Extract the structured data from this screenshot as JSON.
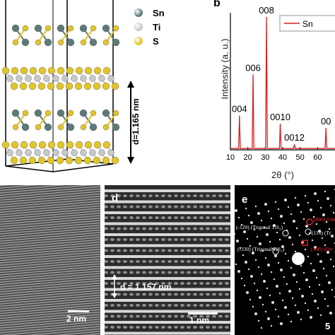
{
  "panel_a": {
    "legend": [
      {
        "label": "Sn",
        "color": "#5d7a78"
      },
      {
        "label": "Ti",
        "color": "#c8c8c8"
      },
      {
        "label": "S",
        "color": "#e3c52a"
      }
    ],
    "d_label": "d=1.165 nm"
  },
  "panel_b": {
    "letter": "b",
    "legend_label": "Sn",
    "chart_data": {
      "type": "line",
      "xlabel": "2θ (°)",
      "ylabel": "Intensity (a. u.)",
      "xlim": [
        10,
        70
      ],
      "xticks": [
        "10",
        "20",
        "30",
        "40",
        "50",
        "60"
      ],
      "series": [
        {
          "name": "Sn",
          "color": "#d62020"
        }
      ],
      "peaks": [
        {
          "x": 15.2,
          "y": 0.25,
          "label": "004"
        },
        {
          "x": 23.0,
          "y": 0.55,
          "label": "006"
        },
        {
          "x": 30.7,
          "y": 0.97,
          "label": "008"
        },
        {
          "x": 38.6,
          "y": 0.19,
          "label": "0010"
        },
        {
          "x": 46.7,
          "y": 0.04,
          "label": "0012"
        },
        {
          "x": 64.8,
          "y": 0.16,
          "label": "00"
        }
      ]
    }
  },
  "panel_c": {
    "scale": "2 nm"
  },
  "panel_d": {
    "letter": "d",
    "measure": "d = 1.157 nm",
    "scale": "1 nm"
  },
  "panel_e": {
    "letter": "e",
    "labels": [
      {
        "text": "(-120) (Trigonal TiS₂)",
        "color": "#ffffff"
      },
      {
        "text": "(-330) (Trigonal TiS₂)",
        "color": "#ffffff"
      },
      {
        "text": "(110) (Tr",
        "color": "#ffffff"
      },
      {
        "text": "(800) (Ort",
        "color": "#ff3030"
      },
      {
        "text": "(400) (Ort",
        "color": "#ff3030"
      }
    ],
    "scale": "5"
  }
}
